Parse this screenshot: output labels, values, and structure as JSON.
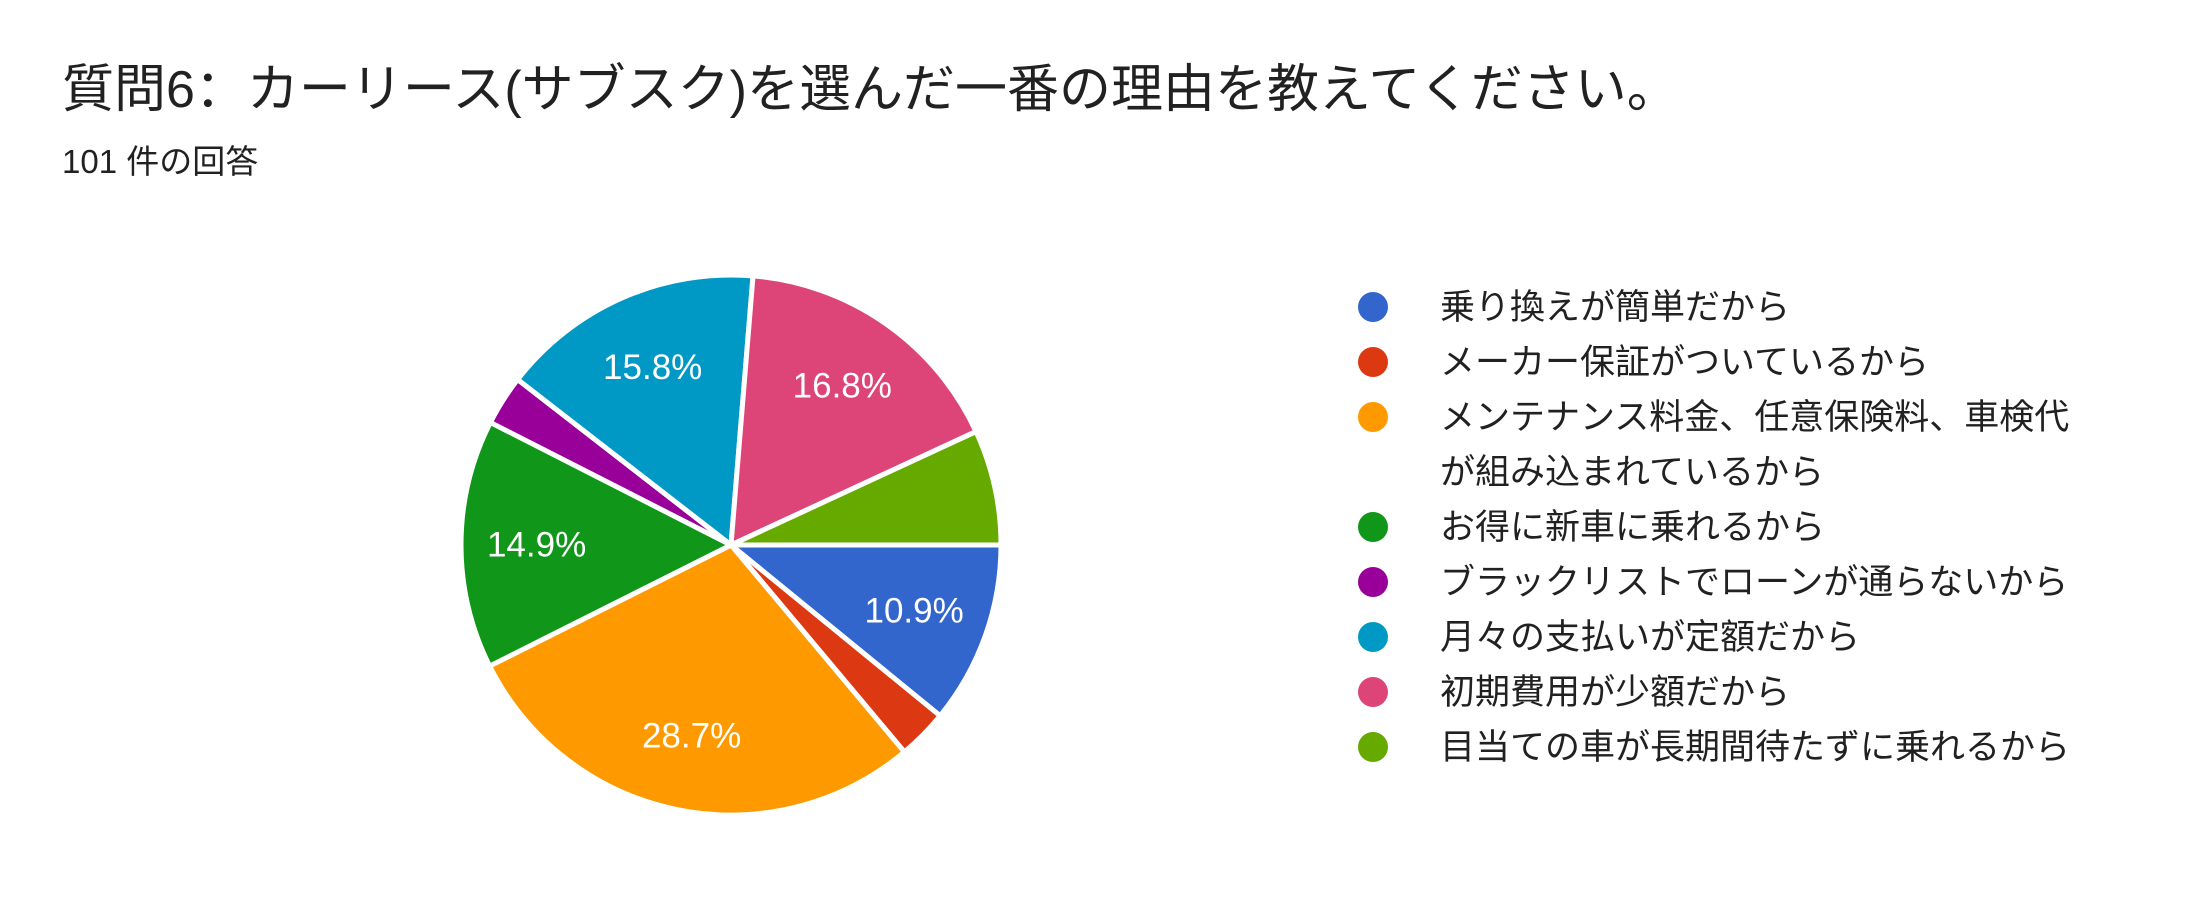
{
  "header": {
    "title": "質問6：カーリース(サブスク)を選んだ一番の理由を教えてください。",
    "subtitle": "101 件の回答"
  },
  "chart_data": {
    "type": "pie",
    "title": "質問6：カーリース(サブスク)を選んだ一番の理由を教えてください。",
    "total_responses": 101,
    "legend_position": "right",
    "start_angle_deg": 90,
    "direction": "clockwise",
    "slices": [
      {
        "label": "乗り換えが簡単だから",
        "count": 11,
        "pct": 10.9,
        "pct_label": "10.9%",
        "color": "#3366CC"
      },
      {
        "label": "メーカー保証がついているから",
        "count": 3,
        "pct": 3.0,
        "pct_label": "",
        "color": "#DC3912"
      },
      {
        "label": "メンテナンス料金、任意保険料、車検代が組み込まれているから",
        "count": 29,
        "pct": 28.7,
        "pct_label": "28.7%",
        "color": "#FF9900"
      },
      {
        "label": "お得に新車に乗れるから",
        "count": 15,
        "pct": 14.9,
        "pct_label": "14.9%",
        "color": "#109618"
      },
      {
        "label": "ブラックリストでローンが通らないから",
        "count": 3,
        "pct": 3.0,
        "pct_label": "",
        "color": "#990099"
      },
      {
        "label": "月々の支払いが定額だから",
        "count": 16,
        "pct": 15.8,
        "pct_label": "15.8%",
        "color": "#0099C6"
      },
      {
        "label": "初期費用が少額だから",
        "count": 17,
        "pct": 16.8,
        "pct_label": "16.8%",
        "color": "#DD4477"
      },
      {
        "label": "目当ての車が長期間待たずに乗れるから",
        "count": 7,
        "pct": 6.9,
        "pct_label": "",
        "color": "#66AA00"
      }
    ]
  }
}
